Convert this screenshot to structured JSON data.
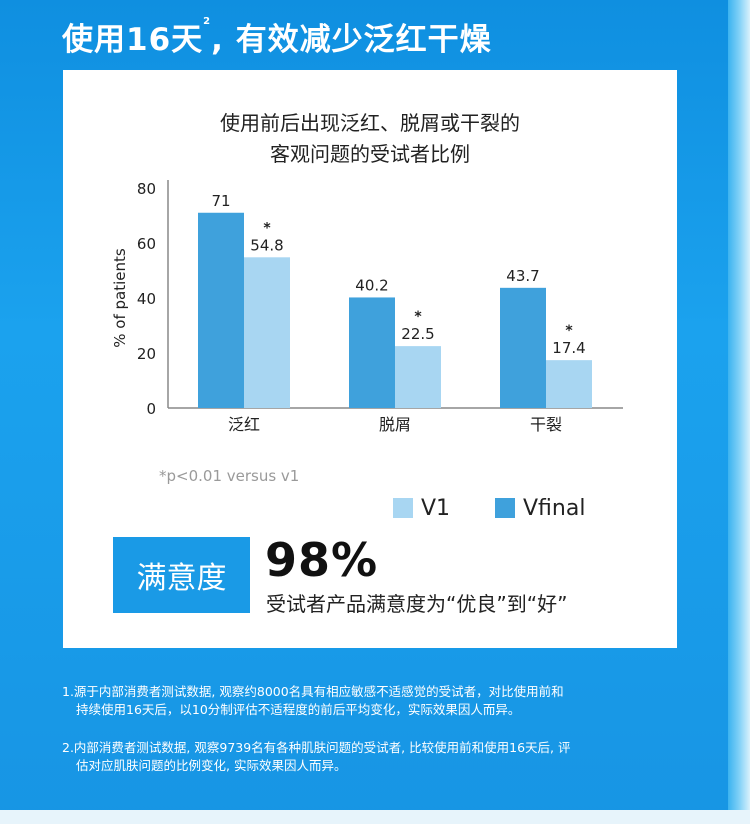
{
  "headline": {
    "text": "使用16天",
    "sup": "2",
    "rest": "有效减少泛红干燥"
  },
  "colors": {
    "vfinal": "#3fa1dc",
    "v1": "#a8d6f2",
    "accent": "#1a9ae6"
  },
  "chart_data": {
    "type": "bar",
    "title_lines": [
      "使用前后出现泛红、脱屑或干裂的",
      "客观问题的受试者比例"
    ],
    "ylabel": "% of patients",
    "xlabel": "",
    "ylim": [
      0,
      80
    ],
    "yticks": [
      0,
      20,
      40,
      60,
      80
    ],
    "grid": false,
    "legend_position": "bottom",
    "categories": [
      "泛红",
      "脱屑",
      "干裂"
    ],
    "series": [
      {
        "name": "Vfinal",
        "values": [
          71,
          40.2,
          43.7
        ],
        "color": "#3fa1dc",
        "labels": [
          "71",
          "40.2",
          "43.7"
        ],
        "stars": [
          false,
          false,
          false
        ]
      },
      {
        "name": "V1",
        "values": [
          54.8,
          22.5,
          17.4
        ],
        "color": "#a8d6f2",
        "labels": [
          "54.8",
          "22.5",
          "17.4"
        ],
        "stars": [
          true,
          true,
          true
        ]
      }
    ],
    "star_symbol": "*",
    "footnote": "*p<0.01 versus v1"
  },
  "legend": [
    {
      "name": "V1",
      "color": "#a8d6f2"
    },
    {
      "name": "Vfinal",
      "color": "#3fa1dc"
    }
  ],
  "satisfaction": {
    "label": "满意度",
    "percent": "98%",
    "description": "受试者产品满意度为“优良”到“好”"
  },
  "notes": [
    {
      "line1": "1.源于内部消费者测试数据, 观察约8000名具有相应敏感不适感觉的受试者，对比使用前和",
      "line2": "持续使用16天后，以10分制评估不适程度的前后平均变化，实际效果因人而异。"
    },
    {
      "line1": "2.内部消费者测试数据, 观察9739名有各种肌肤问题的受试者, 比较使用前和使用16天后, 评",
      "line2": "估对应肌肤问题的比例变化, 实际效果因人而异。"
    }
  ]
}
